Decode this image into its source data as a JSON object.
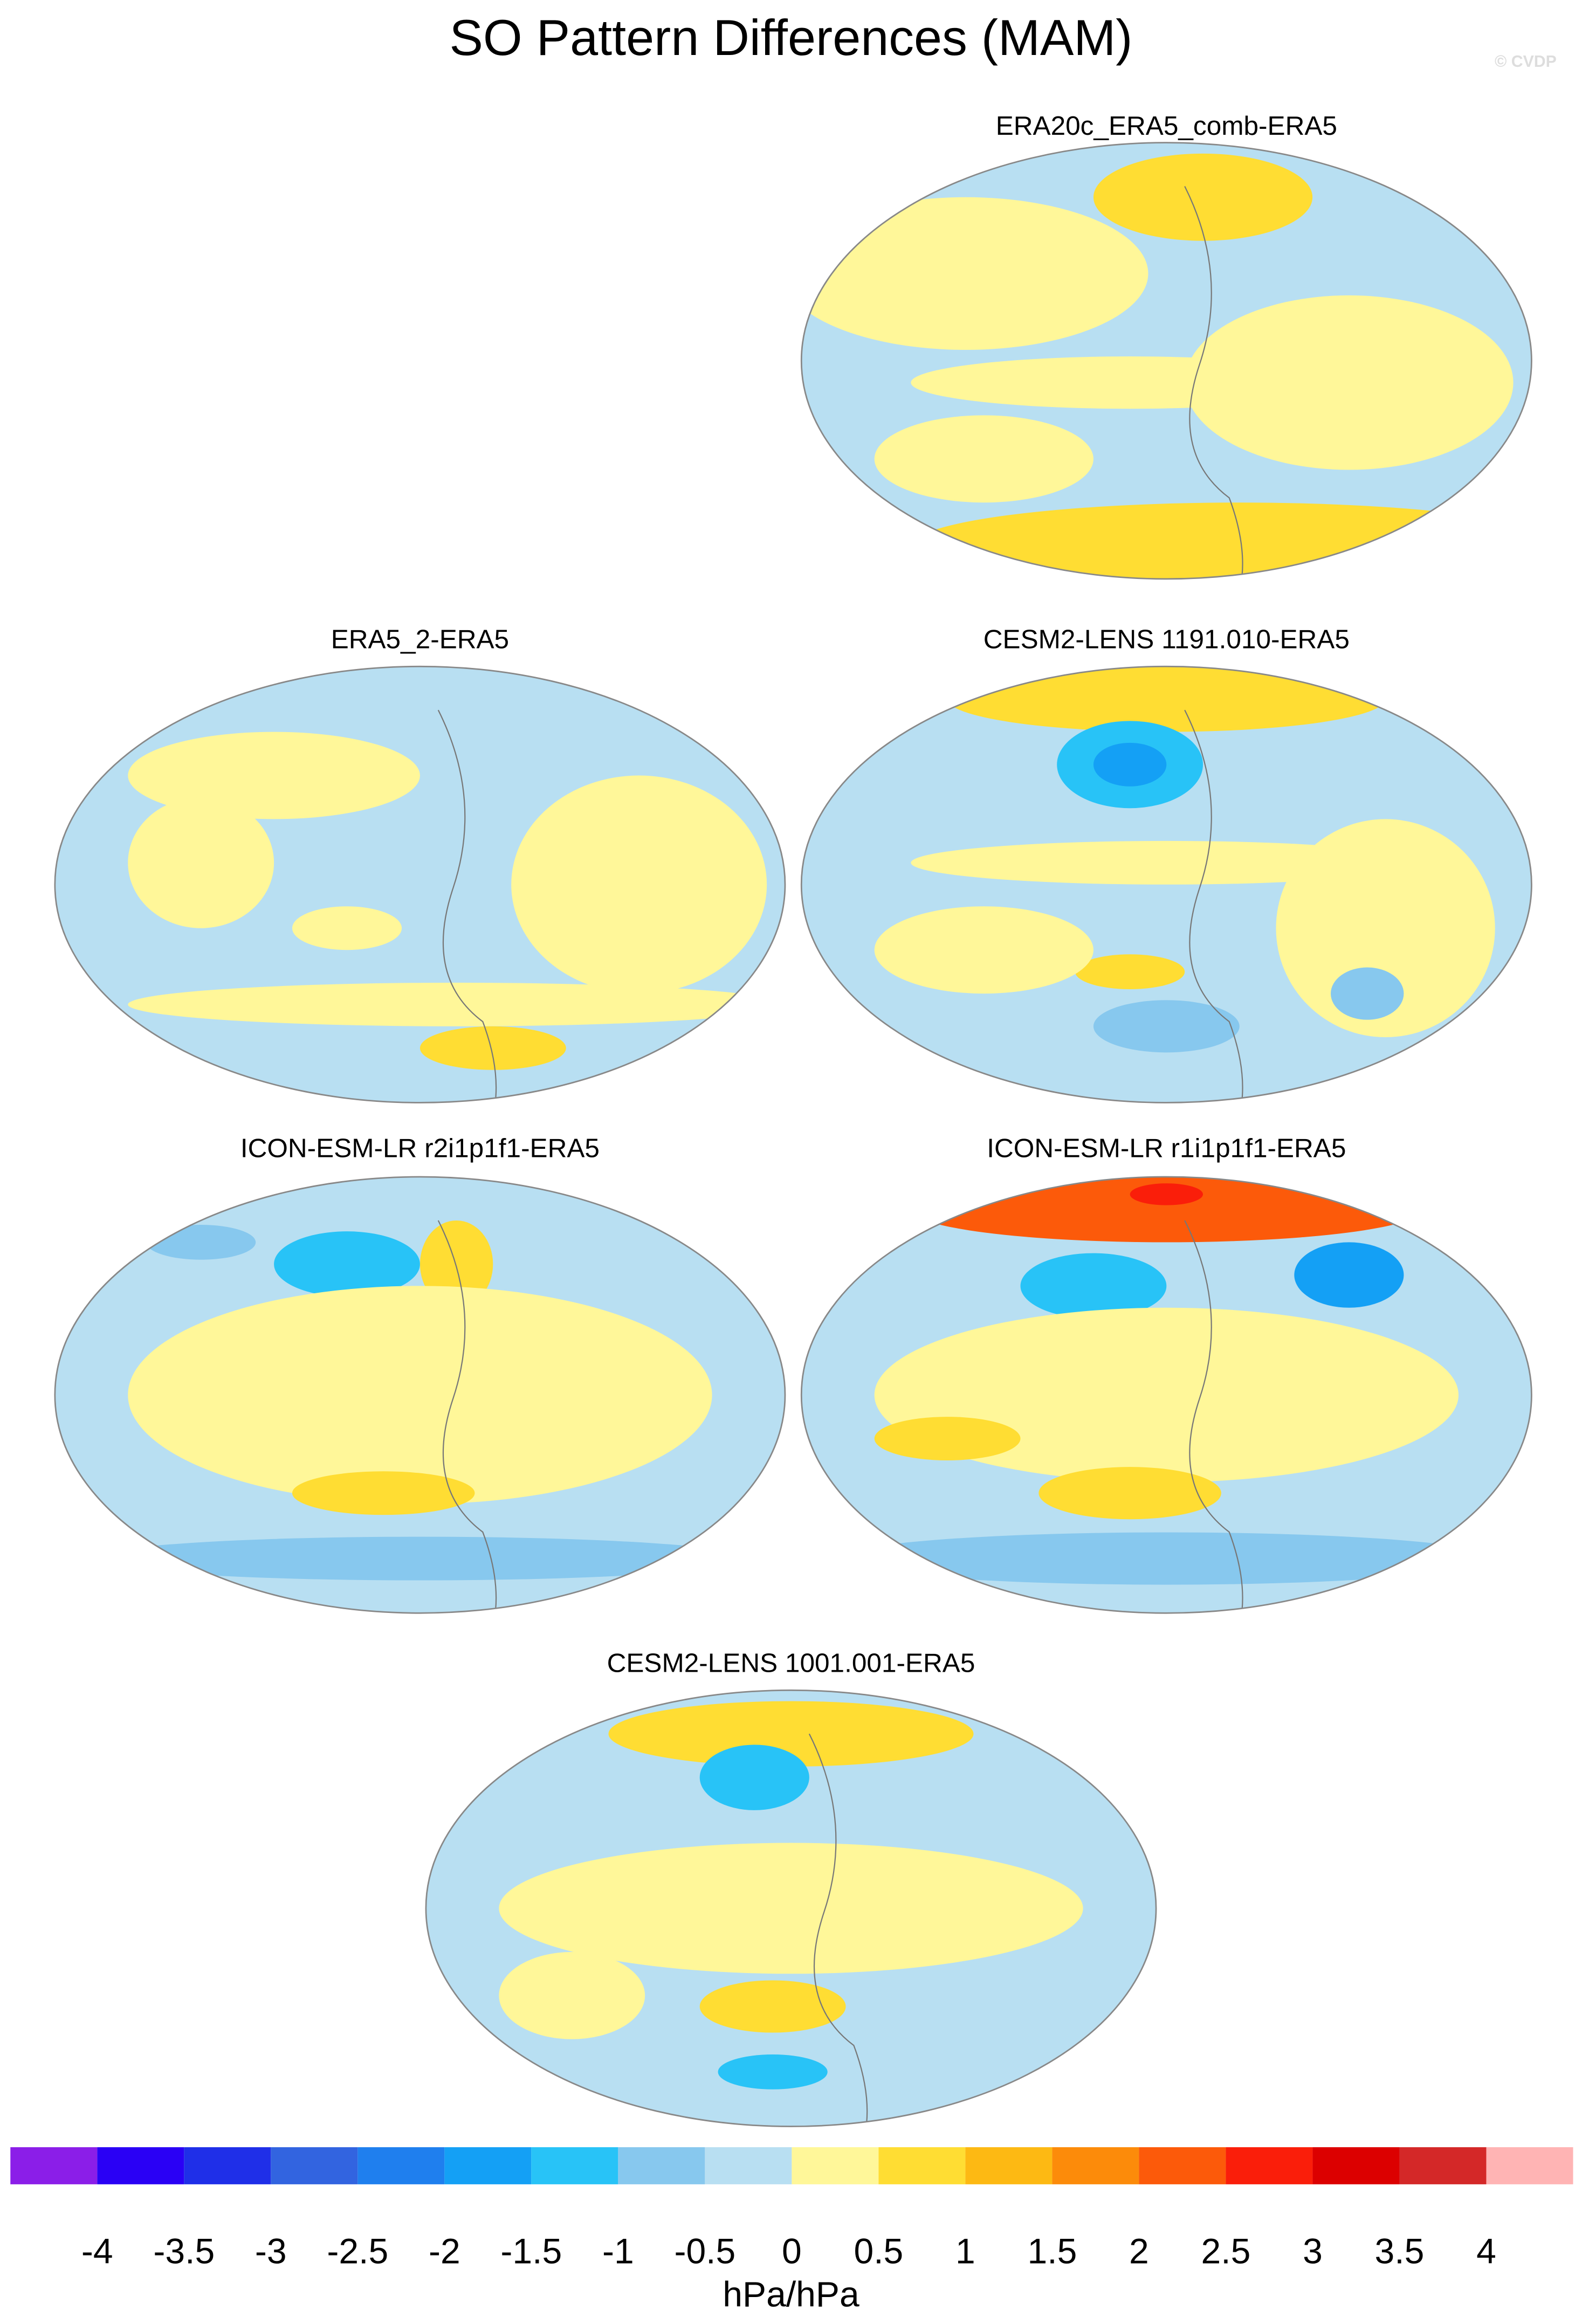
{
  "title": "SO Pattern Differences (MAM)",
  "watermark": "© CVDP",
  "panels": [
    {
      "title": "ERA20c_ERA5_comb-ERA5"
    },
    {
      "title": "ERA5_2-ERA5"
    },
    {
      "title": "CESM2-LENS 1191.010-ERA5"
    },
    {
      "title": "ICON-ESM-LR r2i1p1f1-ERA5"
    },
    {
      "title": "ICON-ESM-LR r1i1p1f1-ERA5"
    },
    {
      "title": "CESM2-LENS 1001.001-ERA5"
    }
  ],
  "colorbar": {
    "colors": [
      "#8b1ee8",
      "#2a00f5",
      "#1f2fe8",
      "#3264e0",
      "#1f7fee",
      "#14a0f5",
      "#28c3f7",
      "#87c8ee",
      "#b8dff2",
      "#fff799",
      "#ffdd33",
      "#fdb913",
      "#fc8b0a",
      "#fc5a0a",
      "#fa1e0a",
      "#dc0000",
      "#d42828",
      "#ffb4b4"
    ],
    "ticks": [
      -4,
      -3.5,
      -3,
      -2.5,
      -2,
      -1.5,
      -1,
      -0.5,
      0,
      0.5,
      1,
      1.5,
      2,
      2.5,
      3,
      3.5,
      4
    ],
    "label": "hPa/hPa"
  }
}
